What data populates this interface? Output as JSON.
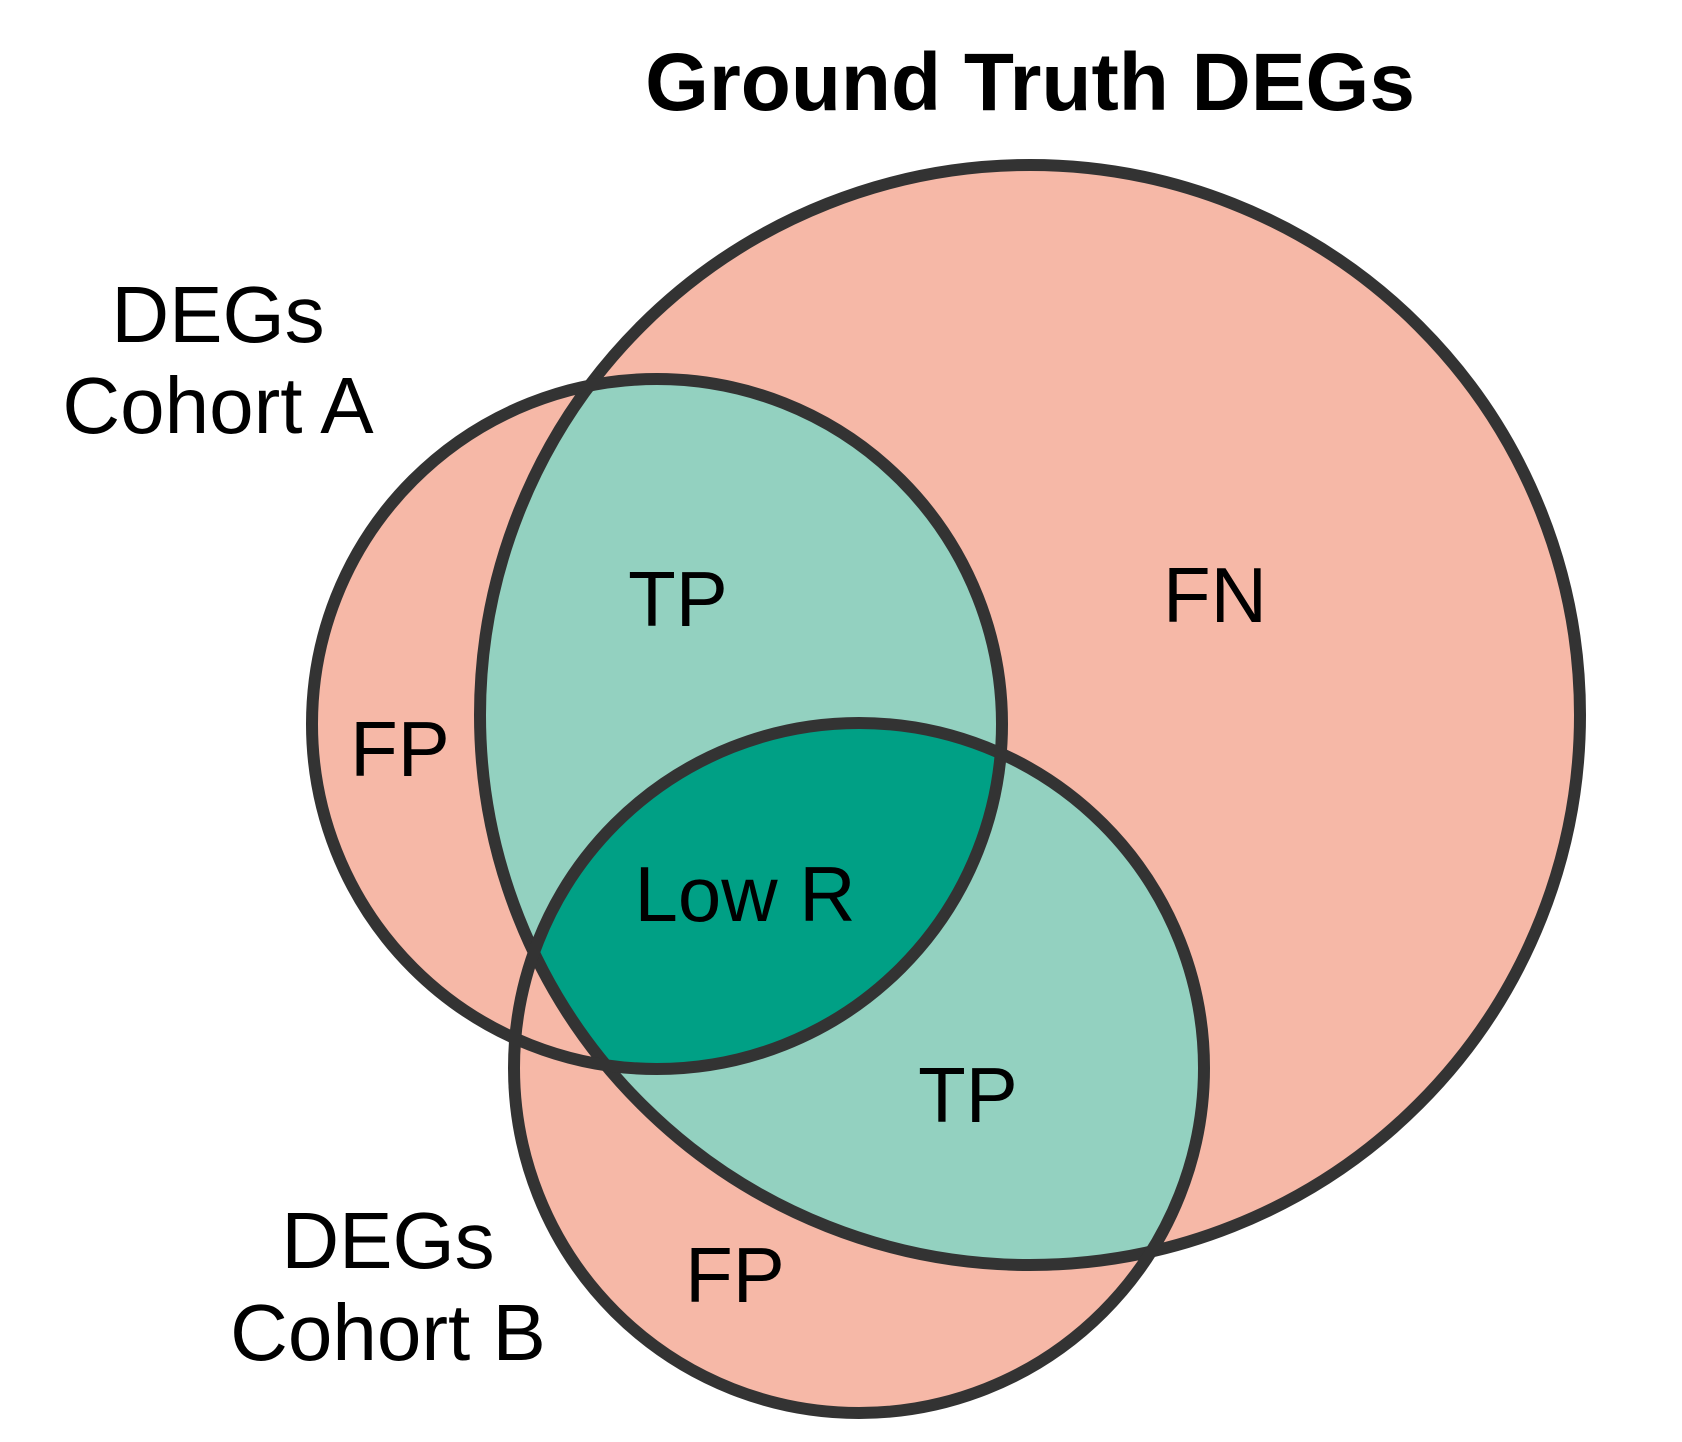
{
  "title": "Ground Truth DEGs",
  "sets": {
    "ground_truth": {
      "label": "Ground Truth DEGs"
    },
    "cohort_a": {
      "line1": "DEGs",
      "line2": "Cohort A"
    },
    "cohort_b": {
      "line1": "DEGs",
      "line2": "Cohort B"
    }
  },
  "regions": {
    "fp_a": "FP",
    "tp_a": "TP",
    "fn": "FN",
    "low_r": "Low R",
    "tp_b": "TP",
    "fp_b": "FP"
  },
  "colors": {
    "false_region": "#f6b8a7",
    "true_positive": "#93d1c0",
    "overlap_ab_truth": "#00a085",
    "outline": "#333333"
  }
}
